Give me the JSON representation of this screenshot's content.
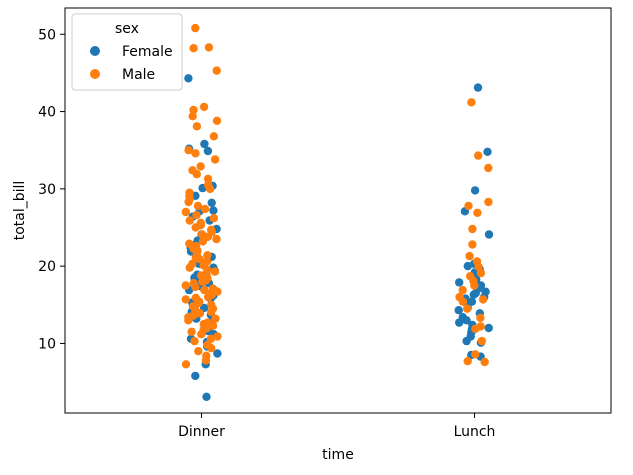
{
  "chart_data": {
    "type": "scatter",
    "subtype": "strip",
    "title": "",
    "xlabel": "time",
    "ylabel": "total_bill",
    "categories": [
      "Dinner",
      "Lunch"
    ],
    "ylim": [
      1.0,
      53.4
    ],
    "yticks": [
      10,
      20,
      30,
      40,
      50
    ],
    "grid": false,
    "legend": {
      "title": "sex",
      "placement": "top-left"
    },
    "series": [
      {
        "name": "Female",
        "color": "#1f77b4",
        "points": [
          [
            "Dinner",
            3.1
          ],
          [
            "Dinner",
            5.8
          ],
          [
            "Dinner",
            7.3
          ],
          [
            "Dinner",
            8.7
          ],
          [
            "Dinner",
            9.6
          ],
          [
            "Dinner",
            10.2
          ],
          [
            "Dinner",
            10.6
          ],
          [
            "Dinner",
            11.2
          ],
          [
            "Dinner",
            11.6
          ],
          [
            "Dinner",
            12.3
          ],
          [
            "Dinner",
            12.7
          ],
          [
            "Dinner",
            13.2
          ],
          [
            "Dinner",
            13.7
          ],
          [
            "Dinner",
            14.1
          ],
          [
            "Dinner",
            14.6
          ],
          [
            "Dinner",
            14.9
          ],
          [
            "Dinner",
            15.3
          ],
          [
            "Dinner",
            15.8
          ],
          [
            "Dinner",
            16.2
          ],
          [
            "Dinner",
            16.6
          ],
          [
            "Dinner",
            16.9
          ],
          [
            "Dinner",
            17.4
          ],
          [
            "Dinner",
            17.8
          ],
          [
            "Dinner",
            18.2
          ],
          [
            "Dinner",
            18.5
          ],
          [
            "Dinner",
            18.9
          ],
          [
            "Dinner",
            19.4
          ],
          [
            "Dinner",
            19.8
          ],
          [
            "Dinner",
            20.3
          ],
          [
            "Dinner",
            20.7
          ],
          [
            "Dinner",
            21.2
          ],
          [
            "Dinner",
            21.9
          ],
          [
            "Dinner",
            22.4
          ],
          [
            "Dinner",
            22.8
          ],
          [
            "Dinner",
            23.3
          ],
          [
            "Dinner",
            24.1
          ],
          [
            "Dinner",
            24.8
          ],
          [
            "Dinner",
            25.3
          ],
          [
            "Dinner",
            25.9
          ],
          [
            "Dinner",
            26.4
          ],
          [
            "Dinner",
            27.1
          ],
          [
            "Dinner",
            27.2
          ],
          [
            "Dinner",
            28.2
          ],
          [
            "Dinner",
            29.1
          ],
          [
            "Dinner",
            30.1
          ],
          [
            "Dinner",
            30.4
          ],
          [
            "Dinner",
            34.9
          ],
          [
            "Dinner",
            35.2
          ],
          [
            "Dinner",
            35.8
          ],
          [
            "Dinner",
            44.3
          ],
          [
            "Lunch",
            8.3
          ],
          [
            "Lunch",
            8.5
          ],
          [
            "Lunch",
            10.1
          ],
          [
            "Lunch",
            10.3
          ],
          [
            "Lunch",
            10.9
          ],
          [
            "Lunch",
            11.4
          ],
          [
            "Lunch",
            11.8
          ],
          [
            "Lunch",
            12.0
          ],
          [
            "Lunch",
            12.4
          ],
          [
            "Lunch",
            12.7
          ],
          [
            "Lunch",
            13.0
          ],
          [
            "Lunch",
            13.4
          ],
          [
            "Lunch",
            13.9
          ],
          [
            "Lunch",
            14.3
          ],
          [
            "Lunch",
            14.6
          ],
          [
            "Lunch",
            15.0
          ],
          [
            "Lunch",
            15.4
          ],
          [
            "Lunch",
            15.8
          ],
          [
            "Lunch",
            16.0
          ],
          [
            "Lunch",
            16.3
          ],
          [
            "Lunch",
            16.5
          ],
          [
            "Lunch",
            16.7
          ],
          [
            "Lunch",
            17.1
          ],
          [
            "Lunch",
            17.5
          ],
          [
            "Lunch",
            17.9
          ],
          [
            "Lunch",
            18.3
          ],
          [
            "Lunch",
            18.7
          ],
          [
            "Lunch",
            19.2
          ],
          [
            "Lunch",
            19.6
          ],
          [
            "Lunch",
            20.0
          ],
          [
            "Lunch",
            20.3
          ],
          [
            "Lunch",
            24.1
          ],
          [
            "Lunch",
            27.1
          ],
          [
            "Lunch",
            29.8
          ],
          [
            "Lunch",
            34.8
          ],
          [
            "Lunch",
            43.1
          ]
        ]
      },
      {
        "name": "Male",
        "color": "#ff7f0e",
        "points": [
          [
            "Dinner",
            7.3
          ],
          [
            "Dinner",
            7.8
          ],
          [
            "Dinner",
            8.4
          ],
          [
            "Dinner",
            9.0
          ],
          [
            "Dinner",
            9.4
          ],
          [
            "Dinner",
            9.8
          ],
          [
            "Dinner",
            10.3
          ],
          [
            "Dinner",
            10.6
          ],
          [
            "Dinner",
            10.9
          ],
          [
            "Dinner",
            11.2
          ],
          [
            "Dinner",
            11.5
          ],
          [
            "Dinner",
            11.8
          ],
          [
            "Dinner",
            12.0
          ],
          [
            "Dinner",
            12.3
          ],
          [
            "Dinner",
            12.5
          ],
          [
            "Dinner",
            12.7
          ],
          [
            "Dinner",
            13.0
          ],
          [
            "Dinner",
            13.2
          ],
          [
            "Dinner",
            13.4
          ],
          [
            "Dinner",
            13.6
          ],
          [
            "Dinner",
            13.9
          ],
          [
            "Dinner",
            14.1
          ],
          [
            "Dinner",
            14.3
          ],
          [
            "Dinner",
            14.5
          ],
          [
            "Dinner",
            14.8
          ],
          [
            "Dinner",
            15.0
          ],
          [
            "Dinner",
            15.2
          ],
          [
            "Dinner",
            15.4
          ],
          [
            "Dinner",
            15.7
          ],
          [
            "Dinner",
            15.9
          ],
          [
            "Dinner",
            16.0
          ],
          [
            "Dinner",
            16.3
          ],
          [
            "Dinner",
            16.5
          ],
          [
            "Dinner",
            16.7
          ],
          [
            "Dinner",
            16.9
          ],
          [
            "Dinner",
            17.1
          ],
          [
            "Dinner",
            17.3
          ],
          [
            "Dinner",
            17.5
          ],
          [
            "Dinner",
            17.8
          ],
          [
            "Dinner",
            18.0
          ],
          [
            "Dinner",
            18.2
          ],
          [
            "Dinner",
            18.4
          ],
          [
            "Dinner",
            18.6
          ],
          [
            "Dinner",
            18.8
          ],
          [
            "Dinner",
            19.0
          ],
          [
            "Dinner",
            19.3
          ],
          [
            "Dinner",
            19.5
          ],
          [
            "Dinner",
            19.8
          ],
          [
            "Dinner",
            20.1
          ],
          [
            "Dinner",
            20.3
          ],
          [
            "Dinner",
            20.6
          ],
          [
            "Dinner",
            20.9
          ],
          [
            "Dinner",
            21.1
          ],
          [
            "Dinner",
            21.4
          ],
          [
            "Dinner",
            21.7
          ],
          [
            "Dinner",
            22.0
          ],
          [
            "Dinner",
            22.3
          ],
          [
            "Dinner",
            22.6
          ],
          [
            "Dinner",
            22.9
          ],
          [
            "Dinner",
            23.2
          ],
          [
            "Dinner",
            23.5
          ],
          [
            "Dinner",
            23.8
          ],
          [
            "Dinner",
            24.1
          ],
          [
            "Dinner",
            24.4
          ],
          [
            "Dinner",
            24.7
          ],
          [
            "Dinner",
            25.0
          ],
          [
            "Dinner",
            25.3
          ],
          [
            "Dinner",
            25.6
          ],
          [
            "Dinner",
            25.9
          ],
          [
            "Dinner",
            26.2
          ],
          [
            "Dinner",
            26.6
          ],
          [
            "Dinner",
            27.0
          ],
          [
            "Dinner",
            27.4
          ],
          [
            "Dinner",
            27.8
          ],
          [
            "Dinner",
            28.3
          ],
          [
            "Dinner",
            28.7
          ],
          [
            "Dinner",
            29.1
          ],
          [
            "Dinner",
            29.5
          ],
          [
            "Dinner",
            30.0
          ],
          [
            "Dinner",
            30.5
          ],
          [
            "Dinner",
            31.3
          ],
          [
            "Dinner",
            31.9
          ],
          [
            "Dinner",
            32.4
          ],
          [
            "Dinner",
            32.9
          ],
          [
            "Dinner",
            33.8
          ],
          [
            "Dinner",
            34.6
          ],
          [
            "Dinner",
            35.0
          ],
          [
            "Dinner",
            36.8
          ],
          [
            "Dinner",
            38.1
          ],
          [
            "Dinner",
            38.8
          ],
          [
            "Dinner",
            39.4
          ],
          [
            "Dinner",
            40.2
          ],
          [
            "Dinner",
            40.6
          ],
          [
            "Dinner",
            45.3
          ],
          [
            "Dinner",
            48.2
          ],
          [
            "Dinner",
            48.3
          ],
          [
            "Dinner",
            50.8
          ],
          [
            "Lunch",
            7.6
          ],
          [
            "Lunch",
            7.7
          ],
          [
            "Lunch",
            8.6
          ],
          [
            "Lunch",
            10.3
          ],
          [
            "Lunch",
            11.9
          ],
          [
            "Lunch",
            12.2
          ],
          [
            "Lunch",
            13.3
          ],
          [
            "Lunch",
            14.5
          ],
          [
            "Lunch",
            15.4
          ],
          [
            "Lunch",
            15.7
          ],
          [
            "Lunch",
            16.0
          ],
          [
            "Lunch",
            16.9
          ],
          [
            "Lunch",
            17.5
          ],
          [
            "Lunch",
            18.1
          ],
          [
            "Lunch",
            18.7
          ],
          [
            "Lunch",
            19.1
          ],
          [
            "Lunch",
            19.9
          ],
          [
            "Lunch",
            20.6
          ],
          [
            "Lunch",
            21.3
          ],
          [
            "Lunch",
            22.8
          ],
          [
            "Lunch",
            24.8
          ],
          [
            "Lunch",
            26.9
          ],
          [
            "Lunch",
            27.8
          ],
          [
            "Lunch",
            28.3
          ],
          [
            "Lunch",
            32.7
          ],
          [
            "Lunch",
            34.3
          ],
          [
            "Lunch",
            41.2
          ]
        ]
      }
    ]
  }
}
